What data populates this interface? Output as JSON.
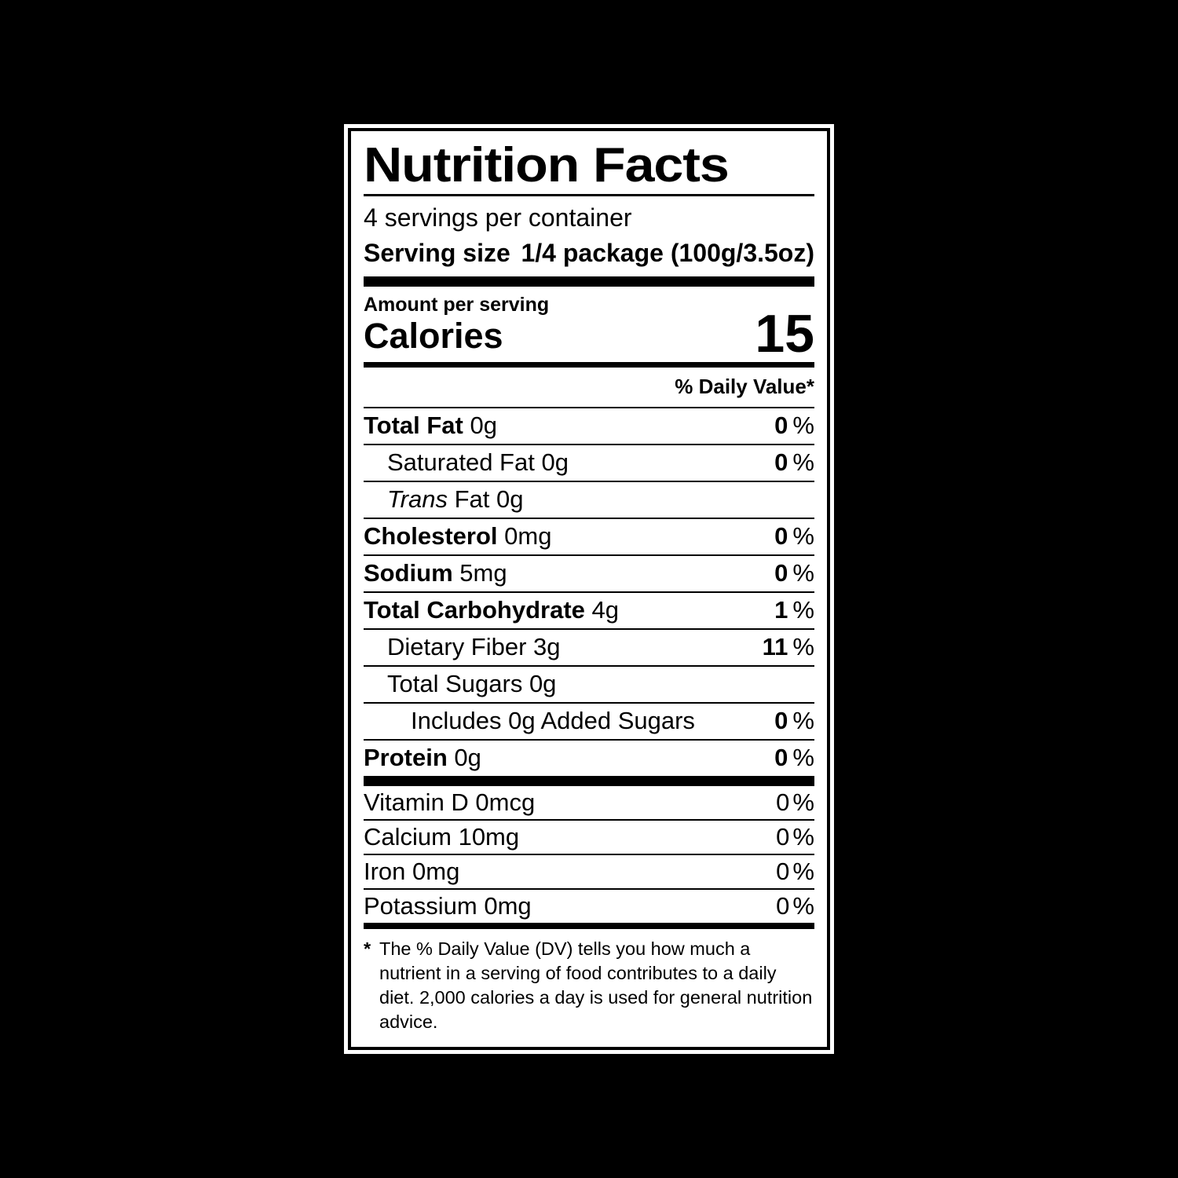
{
  "colors": {
    "page_background": "#000000",
    "label_background": "#ffffff",
    "text": "#000000"
  },
  "label": {
    "title": "Nutrition Facts",
    "servings_per_container": "4 servings per container",
    "serving_size_label": "Serving size",
    "serving_size_value": "1/4 package (100g/3.5oz)",
    "amount_per_serving": "Amount per serving",
    "calories_label": "Calories",
    "calories_value": "15",
    "daily_value_header": "% Daily Value*",
    "percent_sign": "%",
    "nutrients": [
      {
        "name": "Total Fat",
        "name_bold": true,
        "name_italic": false,
        "amount": "0g",
        "dv": "0",
        "indent": 0
      },
      {
        "name": "Saturated Fat",
        "name_bold": false,
        "name_italic": false,
        "amount": "0g",
        "dv": "0",
        "indent": 1
      },
      {
        "name": "Trans",
        "name_bold": false,
        "name_italic": true,
        "name_suffix": " Fat",
        "amount": "0g",
        "dv": null,
        "indent": 1
      },
      {
        "name": "Cholesterol",
        "name_bold": true,
        "name_italic": false,
        "amount": "0mg",
        "dv": "0",
        "indent": 0
      },
      {
        "name": "Sodium",
        "name_bold": true,
        "name_italic": false,
        "amount": "5mg",
        "dv": "0",
        "indent": 0
      },
      {
        "name": "Total Carbohydrate",
        "name_bold": true,
        "name_italic": false,
        "amount": "4g",
        "dv": "1",
        "indent": 0
      },
      {
        "name": "Dietary Fiber",
        "name_bold": false,
        "name_italic": false,
        "amount": "3g",
        "dv": "11",
        "indent": 1
      },
      {
        "name": "Total Sugars",
        "name_bold": false,
        "name_italic": false,
        "amount": "0g",
        "dv": null,
        "indent": 1
      },
      {
        "name": "Includes 0g Added Sugars",
        "name_bold": false,
        "name_italic": false,
        "amount": "",
        "dv": "0",
        "indent": 2
      },
      {
        "name": "Protein",
        "name_bold": true,
        "name_italic": false,
        "amount": "0g",
        "dv": "0",
        "indent": 0
      }
    ],
    "vitamins": [
      {
        "name": "Vitamin D",
        "amount": "0mcg",
        "dv": "0"
      },
      {
        "name": "Calcium",
        "amount": "10mg",
        "dv": "0"
      },
      {
        "name": "Iron",
        "amount": "0mg",
        "dv": "0"
      },
      {
        "name": "Potassium",
        "amount": "0mg",
        "dv": "0"
      }
    ],
    "footnote_asterisk": "*",
    "footnote_text": "The % Daily Value (DV) tells you how much a nutrient in a serving of food contributes to a daily diet. 2,000 calories a day is used for general nutrition advice."
  }
}
